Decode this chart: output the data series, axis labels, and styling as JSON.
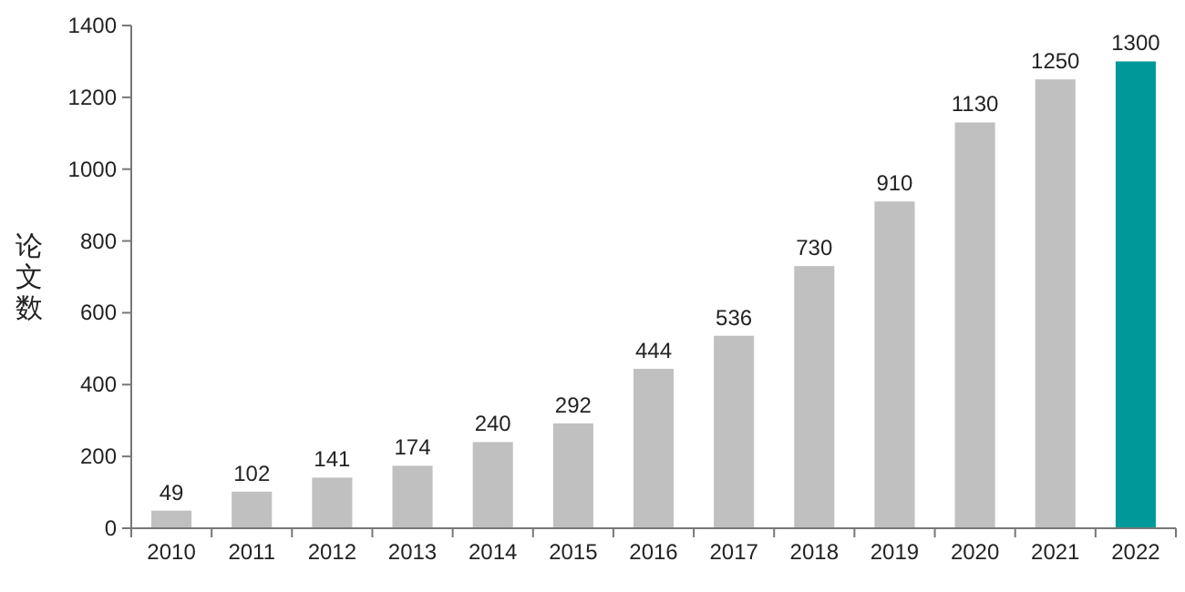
{
  "chart_data": {
    "type": "bar",
    "ylabel": "论文数",
    "categories": [
      "2010",
      "2011",
      "2012",
      "2013",
      "2014",
      "2015",
      "2016",
      "2017",
      "2018",
      "2019",
      "2020",
      "2021",
      "2022"
    ],
    "values": [
      49,
      102,
      141,
      174,
      240,
      292,
      444,
      536,
      730,
      910,
      1130,
      1250,
      1300
    ],
    "colors": [
      "#c0c0c0",
      "#c0c0c0",
      "#c0c0c0",
      "#c0c0c0",
      "#c0c0c0",
      "#c0c0c0",
      "#c0c0c0",
      "#c0c0c0",
      "#c0c0c0",
      "#c0c0c0",
      "#c0c0c0",
      "#c0c0c0",
      "#009999"
    ],
    "ylim": [
      0,
      1400
    ],
    "yticks": [
      0,
      200,
      400,
      600,
      800,
      1000,
      1200,
      1400
    ],
    "data_labels": true,
    "grid": false
  }
}
